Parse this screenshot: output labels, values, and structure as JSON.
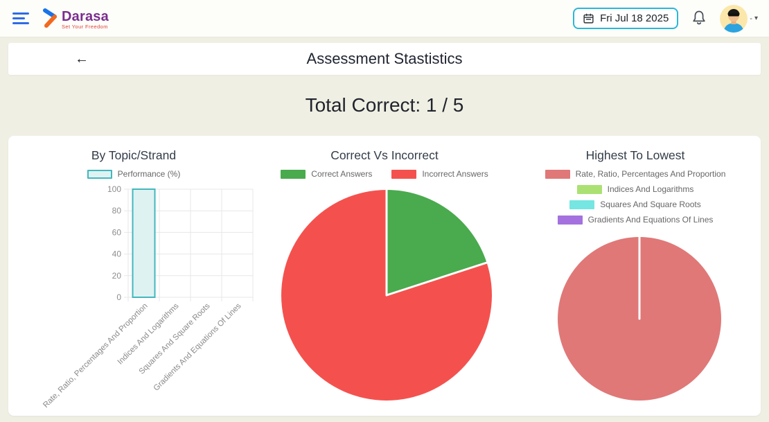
{
  "header": {
    "brand": {
      "name": "Darasa",
      "tagline": "Set Your Freedom"
    },
    "date_button": {
      "label": "Fri Jul 18 2025",
      "border_color": "#2ab7d9"
    },
    "user_menu": {
      "dash": "-",
      "caret": "▾"
    },
    "icons": [
      "hamburger-icon",
      "brand-mark-icon",
      "calendar-icon",
      "bell-icon",
      "user-avatar",
      "caret-down-icon"
    ]
  },
  "title_bar": {
    "back_arrow": "←",
    "title": "Assessment Stastistics"
  },
  "summary": {
    "total_correct": "Total Correct: 1 / 5"
  },
  "chart_data": [
    {
      "type": "bar",
      "title": "By Topic/Strand",
      "legend_label": "Performance (%)",
      "legend_layout": "row",
      "categories": [
        "Rate, Ratio, Percentages And Proportion",
        "Indices And Logarithms",
        "Squares And Square Roots",
        "Gradients And Equations Of Lines"
      ],
      "values": [
        100,
        0,
        0,
        0
      ],
      "ylabel": "",
      "xlabel": "",
      "ylim": [
        0,
        100
      ],
      "yticks": [
        0,
        20,
        40,
        60,
        80,
        100
      ],
      "grid": true,
      "bar_fill": "#def2f2",
      "bar_border": "#43b7bd"
    },
    {
      "type": "pie",
      "title": "Correct Vs Incorrect",
      "legend_layout": "row",
      "labels": [
        "Correct Answers",
        "Incorrect Answers"
      ],
      "values": [
        1,
        4
      ],
      "percentages": [
        20,
        80
      ],
      "colors": [
        "#4aaa4e",
        "#f4514e"
      ],
      "legend_position": "top"
    },
    {
      "type": "pie",
      "title": "Highest To Lowest",
      "legend_layout": "column",
      "labels": [
        "Rate, Ratio, Percentages And Proportion",
        "Indices And Logarithms",
        "Squares And Square Roots",
        "Gradients And Equations Of Lines"
      ],
      "values": [
        100,
        0,
        0,
        0
      ],
      "colors": [
        "#e07878",
        "#abe173",
        "#75e6e1",
        "#a471de"
      ],
      "legend_position": "top"
    }
  ]
}
